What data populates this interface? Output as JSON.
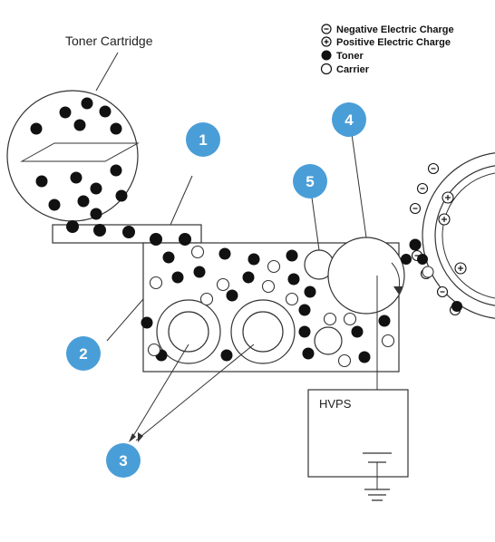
{
  "labels": {
    "toner_cartridge": "Toner Cartridge",
    "hvps": "HVPS"
  },
  "legend": [
    {
      "symbol": "negative-charge",
      "text": "Negative Electric Charge"
    },
    {
      "symbol": "positive-charge",
      "text": "Positive Electric Charge"
    },
    {
      "symbol": "toner",
      "text": "Toner"
    },
    {
      "symbol": "carrier",
      "text": "Carrier"
    }
  ],
  "callouts": [
    "1",
    "2",
    "3",
    "4",
    "5"
  ],
  "colors": {
    "callout_fill": "#4a9ed8",
    "toner": "#111111",
    "outline": "#333333"
  }
}
